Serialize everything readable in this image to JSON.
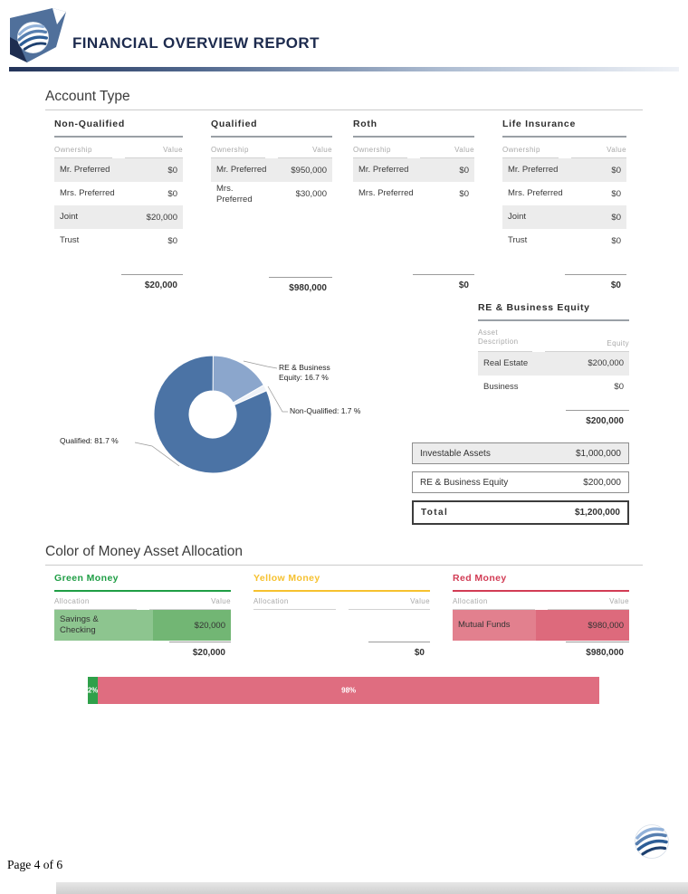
{
  "header": {
    "title": "FINANCIAL OVERVIEW REPORT"
  },
  "sections": {
    "account_type": "Account Type",
    "color_of_money": "Color of Money Asset Allocation"
  },
  "account_tables": [
    {
      "title": "Non-Qualified",
      "col_ownership": "Ownership",
      "col_value": "Value",
      "rows": [
        {
          "owner": "Mr. Preferred",
          "value": "$0"
        },
        {
          "owner": "Mrs. Preferred",
          "value": "$0"
        },
        {
          "owner": "Joint",
          "value": "$20,000"
        },
        {
          "owner": "Trust",
          "value": "$0"
        }
      ],
      "total": "$20,000"
    },
    {
      "title": "Qualified",
      "col_ownership": "Ownership",
      "col_value": "Value",
      "rows": [
        {
          "owner": "Mr. Preferred",
          "value": "$950,000"
        },
        {
          "owner": "Mrs. Preferred",
          "value": "$30,000"
        }
      ],
      "total": "$980,000"
    },
    {
      "title": "Roth",
      "col_ownership": "Ownership",
      "col_value": "Value",
      "rows": [
        {
          "owner": "Mr. Preferred",
          "value": "$0"
        },
        {
          "owner": "Mrs. Preferred",
          "value": "$0"
        }
      ],
      "total": "$0"
    },
    {
      "title": "Life Insurance",
      "col_ownership": "Ownership",
      "col_value": "Value",
      "rows": [
        {
          "owner": "Mr. Preferred",
          "value": "$0"
        },
        {
          "owner": "Mrs. Preferred",
          "value": "$0"
        },
        {
          "owner": "Joint",
          "value": "$0"
        },
        {
          "owner": "Trust",
          "value": "$0"
        }
      ],
      "total": "$0"
    }
  ],
  "chart_data": [
    {
      "type": "pie",
      "donut": true,
      "labels": [
        "RE & Business Equity",
        "Non-Qualified",
        "Qualified"
      ],
      "values": [
        16.7,
        1.7,
        81.7
      ],
      "unit": "%",
      "slices": [
        {
          "label": "RE & Business Equity: 16.7 %",
          "value": 16.7,
          "color": "#8ba6cc"
        },
        {
          "label": "Non-Qualified: 1.7 %",
          "value": 1.7,
          "color": "#eef2f8"
        },
        {
          "label": "Qualified: 81.7 %",
          "value": 81.7,
          "color": "#4b73a5"
        }
      ]
    },
    {
      "type": "bar",
      "subtype": "stacked-horizontal",
      "categories": [
        "Green Money",
        "Red Money"
      ],
      "segments": [
        {
          "label": "2%",
          "value": 2,
          "color": "#2fa04a"
        },
        {
          "label": "98%",
          "value": 98,
          "color": "#df6d80"
        }
      ]
    }
  ],
  "re_business": {
    "title": "RE & Business Equity",
    "col_asset": "Asset Description",
    "col_equity": "Equity",
    "rows": [
      {
        "asset": "Real Estate",
        "equity": "$200,000"
      },
      {
        "asset": "Business",
        "equity": "$0"
      }
    ],
    "total": "$200,000"
  },
  "summary": {
    "rows": [
      {
        "label": "Investable Assets",
        "value": "$1,000,000"
      },
      {
        "label": "RE & Business Equity",
        "value": "$200,000"
      },
      {
        "label": "Total",
        "value": "$1,200,000"
      }
    ]
  },
  "money_tables": [
    {
      "title": "Green Money",
      "col_allocation": "Allocation",
      "col_value": "Value",
      "accent": "#1f9e45",
      "rows": [
        {
          "name": "Savings & Checking",
          "value": "$20,000"
        }
      ],
      "total": "$20,000"
    },
    {
      "title": "Yellow Money",
      "col_allocation": "Allocation",
      "col_value": "Value",
      "accent": "#f6c12f",
      "rows": [],
      "total": "$0"
    },
    {
      "title": "Red Money",
      "col_allocation": "Allocation",
      "col_value": "Value",
      "accent": "#d23c55",
      "rows": [
        {
          "name": "Mutual Funds",
          "value": "$980,000"
        }
      ],
      "total": "$980,000"
    }
  ],
  "footer": {
    "page_label": "Page 4 of 6"
  }
}
